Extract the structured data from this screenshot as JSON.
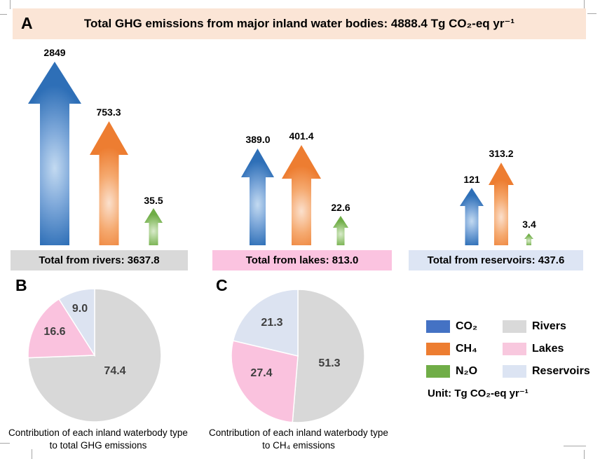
{
  "panel_a": {
    "label": "A",
    "title": "Total GHG emissions from major inland water bodies: 4888.4 Tg CO₂-eq yr⁻¹",
    "groups": [
      {
        "name": "Rivers",
        "total_label": "Total from rivers: 3637.8",
        "banner_color": "#d9d9d9",
        "arrows": [
          {
            "gas": "CO₂",
            "value": "2849"
          },
          {
            "gas": "CH₄",
            "value": "753.3"
          },
          {
            "gas": "N₂O",
            "value": "35.5"
          }
        ]
      },
      {
        "name": "Lakes",
        "total_label": "Total from lakes: 813.0",
        "banner_color": "#fbc3e0",
        "arrows": [
          {
            "gas": "CO₂",
            "value": "389.0"
          },
          {
            "gas": "CH₄",
            "value": "401.4"
          },
          {
            "gas": "N₂O",
            "value": "22.6"
          }
        ]
      },
      {
        "name": "Reservoirs",
        "total_label": "Total from reservoirs: 437.6",
        "banner_color": "#dde5f4",
        "arrows": [
          {
            "gas": "CO₂",
            "value": "121"
          },
          {
            "gas": "CH₄",
            "value": "313.2"
          },
          {
            "gas": "N₂O",
            "value": "3.4"
          }
        ]
      }
    ]
  },
  "panel_b": {
    "label": "B",
    "caption_line1": "Contribution of each inland waterbody type",
    "caption_line2": "to total GHG emissions",
    "slices": [
      {
        "name": "rivers",
        "value": 74.4,
        "label": "74.4",
        "color": "#d8d8d8"
      },
      {
        "name": "lakes",
        "value": 16.6,
        "label": "16.6",
        "color": "#fac2de"
      },
      {
        "name": "reservoirs",
        "value": 9.0,
        "label": "9.0",
        "color": "#dce3f1"
      }
    ]
  },
  "panel_c": {
    "label": "C",
    "caption_line1": "Contribution of each inland waterbody type",
    "caption_line2": "to CH₄ emissions",
    "slices": [
      {
        "name": "rivers",
        "value": 51.3,
        "label": "51.3",
        "color": "#d8d8d8"
      },
      {
        "name": "lakes",
        "value": 27.4,
        "label": "27.4",
        "color": "#fac2de"
      },
      {
        "name": "reservoirs",
        "value": 21.3,
        "label": "21.3",
        "color": "#dce3f1"
      }
    ]
  },
  "legend": {
    "gases": [
      {
        "label": "CO₂",
        "color": "#4472c4"
      },
      {
        "label": "CH₄",
        "color": "#ed7d31"
      },
      {
        "label": "N₂O",
        "color": "#70ad47"
      }
    ],
    "waterbodies": [
      {
        "label": "Rivers",
        "color": "#d9d9d9"
      },
      {
        "label": "Lakes",
        "color": "#f8c8de"
      },
      {
        "label": "Reservoirs",
        "color": "#dce4f3"
      }
    ],
    "unit": "Unit: Tg CO₂-eq yr⁻¹"
  },
  "chart_data": [
    {
      "type": "bar",
      "title": "Total GHG emissions from major inland water bodies: 4888.4 Tg CO₂-eq yr⁻¹",
      "categories": [
        "Rivers",
        "Lakes",
        "Reservoirs"
      ],
      "series": [
        {
          "name": "CO₂",
          "values": [
            2849,
            389.0,
            121
          ]
        },
        {
          "name": "CH₄",
          "values": [
            753.3,
            401.4,
            313.2
          ]
        },
        {
          "name": "N₂O",
          "values": [
            35.5,
            22.6,
            3.4
          ]
        }
      ],
      "totals": {
        "Rivers": 3637.8,
        "Lakes": 813.0,
        "Reservoirs": 437.6,
        "All": 4888.4
      },
      "ylabel": "Tg CO₂-eq yr⁻¹",
      "legend_position": "bottom-right",
      "grid": false
    },
    {
      "type": "pie",
      "title": "Contribution of each inland waterbody type to total GHG emissions",
      "categories": [
        "Rivers",
        "Lakes",
        "Reservoirs"
      ],
      "values": [
        74.4,
        16.6,
        9.0
      ],
      "unit": "%"
    },
    {
      "type": "pie",
      "title": "Contribution of each inland waterbody type to CH₄ emissions",
      "categories": [
        "Rivers",
        "Lakes",
        "Reservoirs"
      ],
      "values": [
        51.3,
        27.4,
        21.3
      ],
      "unit": "%"
    }
  ]
}
